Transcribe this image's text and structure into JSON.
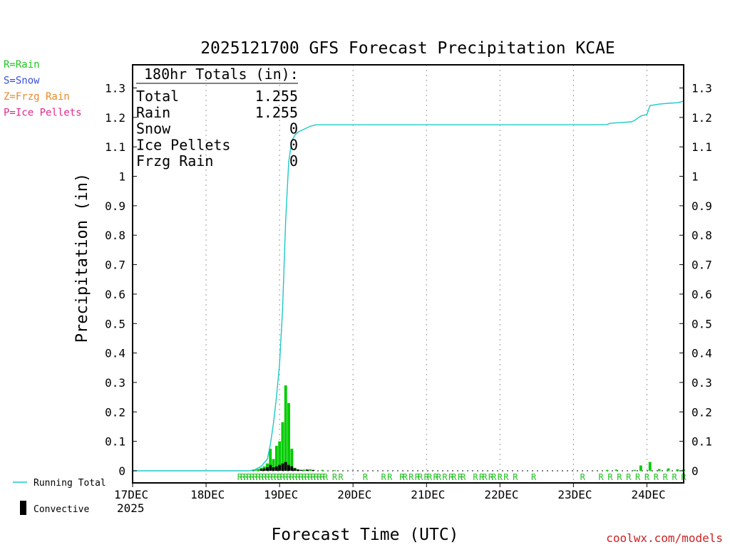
{
  "chart_data": {
    "type": "bar+line",
    "title": "2025121700 GFS Forecast Precipitation KCAE",
    "xlabel": "Forecast Time (UTC)",
    "ylabel": "Precipitation (in)",
    "ylim": [
      0,
      1.35
    ],
    "y_ticks": [
      0,
      0.1,
      0.2,
      0.3,
      0.4,
      0.5,
      0.6,
      0.7,
      0.8,
      0.9,
      1,
      1.1,
      1.2,
      1.3
    ],
    "y_tick_labels": [
      "0",
      "0.1",
      "0.2",
      "0.3",
      "0.4",
      "0.5",
      "0.6",
      "0.7",
      "0.8",
      "0.9",
      "1",
      "1.1",
      "1.2",
      "1.3"
    ],
    "xlim_hours": [
      0,
      180
    ],
    "x_ticks": [
      {
        "hour": 0,
        "label": "17DEC"
      },
      {
        "hour": 24,
        "label": "18DEC"
      },
      {
        "hour": 48,
        "label": "19DEC"
      },
      {
        "hour": 72,
        "label": "20DEC"
      },
      {
        "hour": 96,
        "label": "21DEC"
      },
      {
        "hour": 120,
        "label": "22DEC"
      },
      {
        "hour": 144,
        "label": "23DEC"
      },
      {
        "hour": 168,
        "label": "24DEC"
      }
    ],
    "year_label": "2025",
    "precip_type_legend": [
      {
        "text": "R=Rain",
        "color": "#22c422"
      },
      {
        "text": "S=Snow",
        "color": "#3a4fd8"
      },
      {
        "text": "Z=Frzg Rain",
        "color": "#e88a2a"
      },
      {
        "text": "P=Ice Pellets",
        "color": "#e02a8a"
      }
    ],
    "totals": {
      "header": "180hr Totals (in):",
      "rows": [
        {
          "label": "Total",
          "value": "1.255"
        },
        {
          "label": "Rain",
          "value": "1.255"
        },
        {
          "label": "Snow",
          "value": "0"
        },
        {
          "label": "Ice Pellets",
          "value": "0"
        },
        {
          "label": "Frzg Rain",
          "value": "0"
        }
      ]
    },
    "series": [
      {
        "name": "Precipitation (rain)",
        "kind": "bar",
        "color": "#00cc00",
        "points": [
          [
            40,
            0.004
          ],
          [
            41,
            0.006
          ],
          [
            42,
            0.01
          ],
          [
            43,
            0.015
          ],
          [
            44,
            0.025
          ],
          [
            45,
            0.075
          ],
          [
            46,
            0.04
          ],
          [
            47,
            0.085
          ],
          [
            48,
            0.1
          ],
          [
            49,
            0.165
          ],
          [
            50,
            0.29
          ],
          [
            51,
            0.23
          ],
          [
            52,
            0.075
          ],
          [
            53,
            0.01
          ],
          [
            54,
            0.005
          ],
          [
            56,
            0.004
          ],
          [
            58,
            0.005
          ],
          [
            62,
            0.003
          ],
          [
            66,
            0.002
          ],
          [
            155,
            0.003
          ],
          [
            158,
            0.004
          ],
          [
            164,
            0.003
          ],
          [
            166,
            0.018
          ],
          [
            169,
            0.03
          ],
          [
            172,
            0.006
          ],
          [
            175,
            0.008
          ],
          [
            178,
            0.005
          ],
          [
            180,
            0.004
          ]
        ]
      },
      {
        "name": "Convective",
        "kind": "bar",
        "color": "#000000",
        "points": [
          [
            42,
            0.006
          ],
          [
            43,
            0.008
          ],
          [
            44,
            0.012
          ],
          [
            45,
            0.02
          ],
          [
            46,
            0.012
          ],
          [
            47,
            0.015
          ],
          [
            48,
            0.02
          ],
          [
            49,
            0.025
          ],
          [
            50,
            0.03
          ],
          [
            51,
            0.02
          ],
          [
            52,
            0.015
          ],
          [
            53,
            0.008
          ],
          [
            54,
            0.004
          ],
          [
            55,
            0.003
          ],
          [
            57,
            0.004
          ],
          [
            59,
            0.003
          ]
        ]
      },
      {
        "name": "Running Total",
        "kind": "line",
        "color": "#1ec8c8",
        "points": [
          [
            0,
            0
          ],
          [
            38,
            0
          ],
          [
            40,
            0.004
          ],
          [
            42,
            0.015
          ],
          [
            44,
            0.04
          ],
          [
            45,
            0.09
          ],
          [
            46,
            0.16
          ],
          [
            47,
            0.25
          ],
          [
            48,
            0.36
          ],
          [
            49,
            0.55
          ],
          [
            50,
            0.85
          ],
          [
            51,
            1.05
          ],
          [
            52,
            1.12
          ],
          [
            53,
            1.14
          ],
          [
            54,
            1.15
          ],
          [
            56,
            1.16
          ],
          [
            58,
            1.17
          ],
          [
            60,
            1.175
          ],
          [
            64,
            1.175
          ],
          [
            100,
            1.175
          ],
          [
            150,
            1.175
          ],
          [
            155,
            1.176
          ],
          [
            156,
            1.18
          ],
          [
            160,
            1.183
          ],
          [
            163,
            1.185
          ],
          [
            164,
            1.19
          ],
          [
            166,
            1.205
          ],
          [
            168,
            1.21
          ],
          [
            169,
            1.24
          ],
          [
            172,
            1.245
          ],
          [
            175,
            1.248
          ],
          [
            178,
            1.25
          ],
          [
            180,
            1.255
          ]
        ]
      }
    ],
    "ptype_markers": {
      "symbol": "R",
      "color": "#22c422",
      "hours": [
        35,
        36,
        37,
        38,
        39,
        40,
        41,
        42,
        43,
        44,
        45,
        46,
        47,
        48,
        49,
        50,
        51,
        52,
        53,
        54,
        55,
        56,
        57,
        58,
        59,
        60,
        61,
        62,
        63,
        66,
        68,
        76,
        82,
        84,
        88,
        89,
        91,
        93,
        94,
        96,
        97,
        99,
        100,
        102,
        104,
        105,
        107,
        108,
        112,
        114,
        115,
        117,
        118,
        120,
        122,
        125,
        131,
        147,
        153,
        156,
        159,
        162,
        165,
        168,
        171,
        174,
        177,
        180
      ]
    },
    "legend": [
      {
        "label": "Running Total",
        "kind": "line",
        "color": "#1ec8c8"
      },
      {
        "label": "Convective",
        "kind": "bar",
        "color": "#000000"
      }
    ],
    "source_text": "coolwx.com/models"
  }
}
